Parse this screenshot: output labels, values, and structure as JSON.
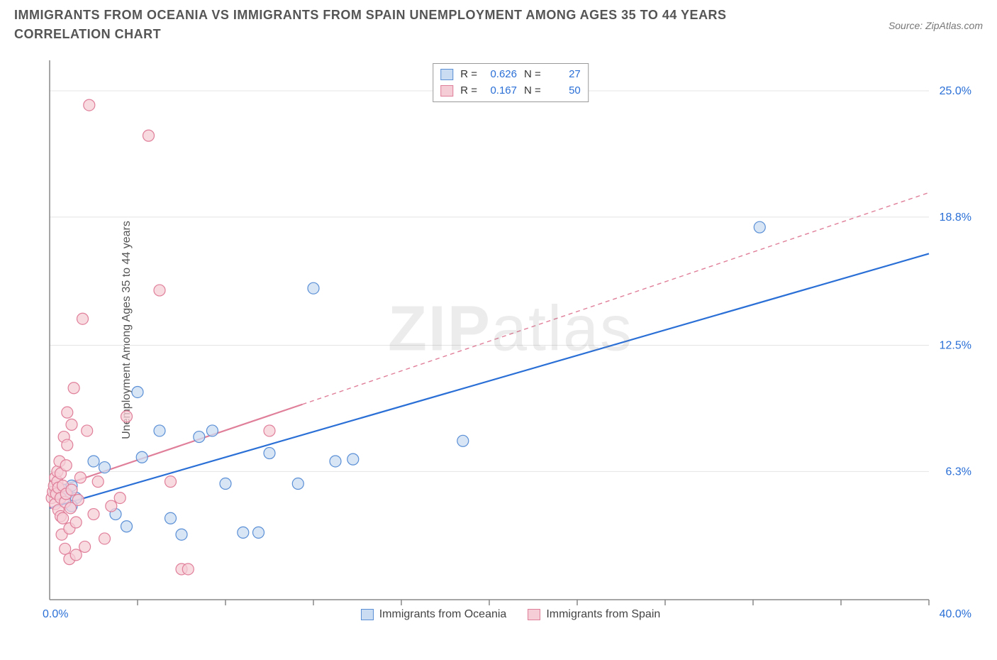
{
  "title": "IMMIGRANTS FROM OCEANIA VS IMMIGRANTS FROM SPAIN UNEMPLOYMENT AMONG AGES 35 TO 44 YEARS CORRELATION CHART",
  "source": "Source: ZipAtlas.com",
  "watermark_bold": "ZIP",
  "watermark_light": "atlas",
  "y_axis_label": "Unemployment Among Ages 35 to 44 years",
  "chart": {
    "type": "scatter",
    "xlim": [
      0,
      40
    ],
    "ylim": [
      0,
      26.5
    ],
    "x_ticks": [
      4,
      8,
      12,
      16,
      20,
      24,
      28,
      32,
      36,
      40
    ],
    "y_gridlines": [
      6.3,
      12.5,
      18.8,
      25.0
    ],
    "y_tick_labels": [
      "6.3%",
      "12.5%",
      "18.8%",
      "25.0%"
    ],
    "x_min_label": "0.0%",
    "x_max_label": "40.0%",
    "background_color": "#ffffff",
    "grid_color": "#e4e4e4",
    "axis_color": "#888888",
    "tick_color": "#888888",
    "marker_radius": 8,
    "marker_stroke_width": 1.2,
    "series": [
      {
        "name": "Immigrants from Oceania",
        "fill": "#c9dcf2",
        "stroke": "#5a8fd6",
        "fill_opacity": 0.75,
        "r_value": "0.626",
        "n_value": "27",
        "trend": {
          "x1": 0,
          "y1": 4.5,
          "x2": 40,
          "y2": 17.0,
          "solid_until_x": 40,
          "color": "#2a6fd6",
          "width": 2.2
        },
        "points": [
          [
            0.5,
            5.0
          ],
          [
            0.6,
            5.4
          ],
          [
            0.8,
            5.2
          ],
          [
            1.0,
            5.6
          ],
          [
            1.2,
            5.0
          ],
          [
            1.0,
            4.6
          ],
          [
            2.0,
            6.8
          ],
          [
            2.5,
            6.5
          ],
          [
            3.0,
            4.2
          ],
          [
            3.5,
            3.6
          ],
          [
            4.0,
            10.2
          ],
          [
            4.2,
            7.0
          ],
          [
            5.0,
            8.3
          ],
          [
            5.5,
            4.0
          ],
          [
            6.0,
            3.2
          ],
          [
            6.8,
            8.0
          ],
          [
            7.4,
            8.3
          ],
          [
            8.0,
            5.7
          ],
          [
            8.8,
            3.3
          ],
          [
            9.5,
            3.3
          ],
          [
            10.0,
            7.2
          ],
          [
            11.3,
            5.7
          ],
          [
            12.0,
            15.3
          ],
          [
            13.0,
            6.8
          ],
          [
            13.8,
            6.9
          ],
          [
            18.8,
            7.8
          ],
          [
            32.3,
            18.3
          ]
        ]
      },
      {
        "name": "Immigrants from Spain",
        "fill": "#f5cdd7",
        "stroke": "#e07f9a",
        "fill_opacity": 0.75,
        "r_value": "0.167",
        "n_value": "50",
        "trend": {
          "x1": 0,
          "y1": 5.4,
          "x2": 40,
          "y2": 20.0,
          "solid_until_x": 11.5,
          "color": "#e07f9a",
          "width": 2.2,
          "dash": "6 5"
        },
        "points": [
          [
            0.1,
            5.0
          ],
          [
            0.15,
            5.3
          ],
          [
            0.2,
            5.6
          ],
          [
            0.25,
            4.7
          ],
          [
            0.25,
            6.0
          ],
          [
            0.3,
            5.2
          ],
          [
            0.35,
            5.8
          ],
          [
            0.35,
            6.3
          ],
          [
            0.4,
            4.4
          ],
          [
            0.4,
            5.5
          ],
          [
            0.45,
            6.8
          ],
          [
            0.5,
            4.1
          ],
          [
            0.5,
            5.0
          ],
          [
            0.5,
            6.2
          ],
          [
            0.55,
            3.2
          ],
          [
            0.6,
            4.0
          ],
          [
            0.6,
            5.6
          ],
          [
            0.65,
            8.0
          ],
          [
            0.7,
            2.5
          ],
          [
            0.7,
            4.8
          ],
          [
            0.75,
            5.2
          ],
          [
            0.75,
            6.6
          ],
          [
            0.8,
            7.6
          ],
          [
            0.8,
            9.2
          ],
          [
            0.9,
            2.0
          ],
          [
            0.9,
            3.5
          ],
          [
            0.95,
            4.5
          ],
          [
            1.0,
            5.4
          ],
          [
            1.0,
            8.6
          ],
          [
            1.1,
            10.4
          ],
          [
            1.2,
            2.2
          ],
          [
            1.2,
            3.8
          ],
          [
            1.3,
            4.9
          ],
          [
            1.4,
            6.0
          ],
          [
            1.5,
            13.8
          ],
          [
            1.6,
            2.6
          ],
          [
            1.7,
            8.3
          ],
          [
            1.8,
            24.3
          ],
          [
            2.0,
            4.2
          ],
          [
            2.2,
            5.8
          ],
          [
            2.5,
            3.0
          ],
          [
            2.8,
            4.6
          ],
          [
            3.2,
            5.0
          ],
          [
            3.5,
            9.0
          ],
          [
            4.5,
            22.8
          ],
          [
            5.0,
            15.2
          ],
          [
            5.5,
            5.8
          ],
          [
            6.0,
            1.5
          ],
          [
            6.3,
            1.5
          ],
          [
            10.0,
            8.3
          ]
        ]
      }
    ]
  },
  "stats_legend": {
    "r_label": "R =",
    "n_label": "N ="
  },
  "bottom_legend": {
    "items": [
      "Immigrants from Oceania",
      "Immigrants from Spain"
    ]
  }
}
